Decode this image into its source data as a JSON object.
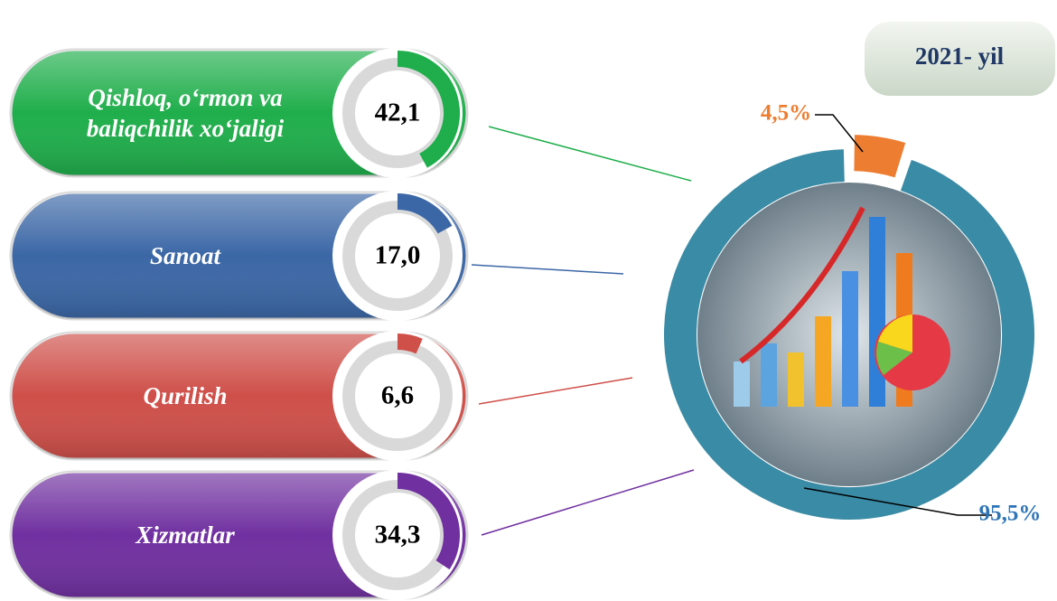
{
  "chart_data": [
    {
      "type": "gauge",
      "categories": [
        "Qishloq, o‘rmon va baliqchilik xo‘jaligi",
        "Sanoat",
        "Qurilish",
        "Xizmatlar"
      ],
      "values": [
        42.1,
        17.0,
        6.6,
        34.3
      ],
      "value_labels": [
        "42,1",
        "17,0",
        "6,6",
        "34,3"
      ],
      "colors": [
        "#1fae4b",
        "#3b67a6",
        "#cf4f49",
        "#7030a0"
      ],
      "ylim": [
        0,
        100
      ]
    },
    {
      "type": "donut",
      "title": "2021- yil",
      "values": [
        4.5,
        95.5
      ],
      "value_labels": [
        "4,5%",
        "95,5%"
      ],
      "colors": [
        "#ed7d31",
        "#3a8ba5"
      ]
    }
  ]
}
